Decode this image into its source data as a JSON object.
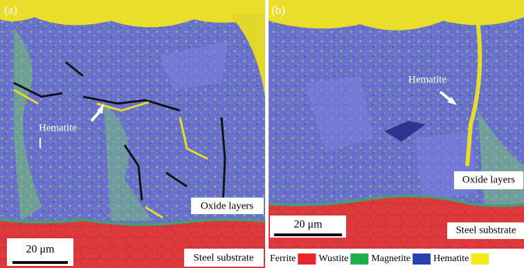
{
  "panels": [
    {
      "label": "(a)",
      "phase_label": "Hematite",
      "layer_label": "Oxide layers",
      "scale_bar": "20 μm",
      "substrate_label": "Steel substrate"
    },
    {
      "label": "(b)",
      "phase_label": "Hematite",
      "layer_label": "Oxide layers",
      "scale_bar": "20 μm",
      "substrate_label": "Steel substrate"
    }
  ],
  "legend": [
    {
      "name": "Ferrite",
      "color": "#e8252a"
    },
    {
      "name": "Wustite",
      "color": "#1fae4a"
    },
    {
      "name": "Magnetite",
      "color": "#2c3fb0"
    },
    {
      "name": "Hematite",
      "color": "#f5ea1a"
    }
  ]
}
